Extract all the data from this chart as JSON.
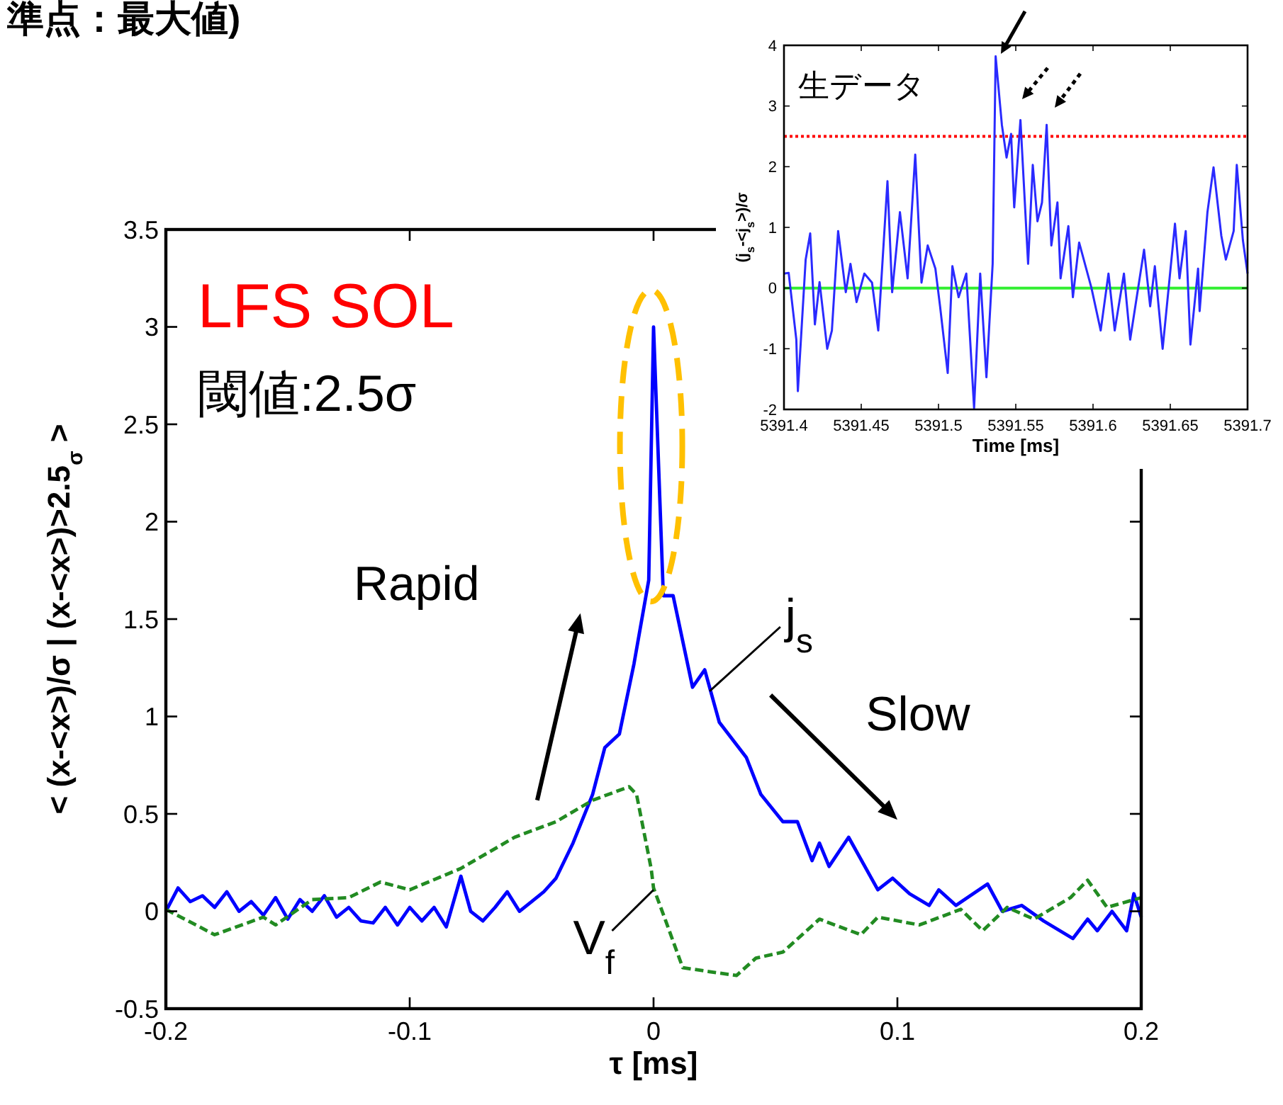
{
  "chart_data": [
    {
      "type": "line",
      "xlabel": "τ [ms]",
      "ylabel": "< (x-<x>)/σ | (x-<x>)>2.5$_{σ}$ >",
      "xlim": [
        -0.2,
        0.2
      ],
      "ylim": [
        -0.5,
        3.5
      ],
      "xticks": [
        -0.2,
        -0.1,
        0,
        0.1,
        0.2
      ],
      "yticks": [
        -0.5,
        0,
        0.5,
        1,
        1.5,
        2,
        2.5,
        3,
        3.5
      ],
      "annotations": [
        "準点：最大値)",
        "LFS SOL",
        "閾値:2.5σ",
        "Rapid",
        "Slow"
      ],
      "series": [
        {
          "name": "j$_{s}$",
          "color": "#0000ff",
          "line_style": "solid",
          "x": [
            -0.2,
            -0.195,
            -0.19,
            -0.185,
            -0.18,
            -0.175,
            -0.17,
            -0.165,
            -0.16,
            -0.155,
            -0.15,
            -0.145,
            -0.14,
            -0.135,
            -0.13,
            -0.125,
            -0.12,
            -0.115,
            -0.11,
            -0.105,
            -0.1,
            -0.095,
            -0.09,
            -0.085,
            -0.079,
            -0.075,
            -0.07,
            -0.065,
            -0.06,
            -0.055,
            -0.05,
            -0.045,
            -0.04,
            -0.033,
            -0.025,
            -0.02,
            -0.014,
            -0.008,
            -0.002,
            0,
            0.004,
            0.008,
            0.016,
            0.021,
            0.027,
            0.038,
            0.044,
            0.053,
            0.059,
            0.065,
            0.068,
            0.072,
            0.08,
            0.092,
            0.098,
            0.105,
            0.113,
            0.117,
            0.124,
            0.137,
            0.143,
            0.151,
            0.16,
            0.172,
            0.178,
            0.182,
            0.188,
            0.194,
            0.197,
            0.2
          ],
          "values": [
            0,
            0.12,
            0.05,
            0.08,
            0.02,
            0.1,
            0,
            0.05,
            -0.02,
            0.07,
            -0.04,
            0.06,
            0,
            0.08,
            -0.03,
            0.02,
            -0.05,
            -0.06,
            0.02,
            -0.07,
            0.02,
            -0.05,
            0.02,
            -0.08,
            0.18,
            0,
            -0.05,
            0.02,
            0.1,
            0,
            0.05,
            0.1,
            0.17,
            0.35,
            0.6,
            0.84,
            0.91,
            1.27,
            1.7,
            3.0,
            1.62,
            1.62,
            1.15,
            1.24,
            0.97,
            0.79,
            0.6,
            0.46,
            0.46,
            0.26,
            0.35,
            0.23,
            0.38,
            0.11,
            0.17,
            0.09,
            0.03,
            0.11,
            0.03,
            0.14,
            0,
            0.03,
            -0.05,
            -0.14,
            -0.04,
            -0.1,
            0,
            -0.1,
            0.09,
            -0.03
          ]
        },
        {
          "name": "V$_{f}$",
          "color": "#228b22",
          "line_style": "dashed",
          "x": [
            -0.2,
            -0.18,
            -0.16,
            -0.155,
            -0.14,
            -0.125,
            -0.112,
            -0.1,
            -0.079,
            -0.057,
            -0.04,
            -0.025,
            -0.01,
            -0.007,
            -0.001,
            0,
            0.005,
            0.012,
            0.023,
            0.034,
            0.042,
            0.053,
            0.068,
            0.085,
            0.092,
            0.109,
            0.126,
            0.135,
            0.145,
            0.156,
            0.171,
            0.178,
            0.186,
            0.2
          ],
          "values": [
            0.01,
            -0.12,
            -0.03,
            -0.07,
            0.06,
            0.07,
            0.15,
            0.11,
            0.22,
            0.38,
            0.46,
            0.57,
            0.64,
            0.6,
            0.22,
            0.12,
            -0.05,
            -0.29,
            -0.31,
            -0.33,
            -0.24,
            -0.21,
            -0.04,
            -0.12,
            -0.03,
            -0.07,
            0.01,
            -0.1,
            0.02,
            -0.04,
            0.07,
            0.16,
            0.02,
            0.07
          ]
        }
      ]
    },
    {
      "type": "line",
      "xlabel": "Time [ms]",
      "ylabel": "(j$_{s}$-<j$_{s}$>)/σ",
      "xlim": [
        5391.4,
        5391.7
      ],
      "ylim": [
        -2,
        4
      ],
      "xticks": [
        5391.4,
        5391.45,
        5391.5,
        5391.55,
        5391.6,
        5391.65,
        5391.7
      ],
      "yticks": [
        -2,
        -1,
        0,
        1,
        2,
        3,
        4
      ],
      "annotations": [
        "生データ"
      ],
      "ref_lines": [
        {
          "axis": "y",
          "value": 2.5,
          "color": "#ff0000",
          "line_style": "dotted"
        },
        {
          "axis": "y",
          "value": 0,
          "color": "#33ee33",
          "line_style": "solid"
        }
      ],
      "series": [
        {
          "color": "#2a2aff",
          "line_style": "solid",
          "x": [
            5391.4,
            5391.403,
            5391.408,
            5391.409,
            5391.414,
            5391.417,
            5391.42,
            5391.423,
            5391.428,
            5391.431,
            5391.435,
            5391.44,
            5391.443,
            5391.447,
            5391.452,
            5391.457,
            5391.461,
            5391.467,
            5391.47,
            5391.475,
            5391.48,
            5391.485,
            5391.489,
            5391.493,
            5391.498,
            5391.501,
            5391.506,
            5391.509,
            5391.513,
            5391.518,
            5391.523,
            5391.527,
            5391.531,
            5391.535,
            5391.537,
            5391.541,
            5391.544,
            5391.547,
            5391.549,
            5391.553,
            5391.558,
            5391.561,
            5391.564,
            5391.567,
            5391.57,
            5391.573,
            5391.577,
            5391.579,
            5391.584,
            5391.587,
            5391.591,
            5391.599,
            5391.605,
            5391.61,
            5391.614,
            5391.62,
            5391.624,
            5391.633,
            5391.637,
            5391.64,
            5391.645,
            5391.653,
            5391.656,
            5391.66,
            5391.663,
            5391.668,
            5391.669,
            5391.674,
            5391.678,
            5391.683,
            5391.686,
            5391.691,
            5391.693,
            5391.697,
            5391.7
          ],
          "values": [
            0.24,
            0.25,
            -0.85,
            -1.7,
            0.47,
            0.9,
            -0.6,
            0.1,
            -1.0,
            -0.7,
            0.94,
            -0.07,
            0.4,
            -0.23,
            0.24,
            0.09,
            -0.7,
            1.76,
            -0.07,
            1.25,
            0.16,
            2.2,
            0.09,
            0.7,
            0.32,
            -0.3,
            -1.4,
            0.36,
            -0.15,
            0.24,
            -1.98,
            0.24,
            -1.47,
            0.4,
            3.82,
            2.69,
            2.15,
            2.54,
            1.33,
            2.77,
            0.4,
            2.03,
            1.1,
            1.41,
            2.69,
            0.7,
            1.41,
            0.16,
            1.02,
            -0.15,
            0.75,
            0,
            -0.7,
            0.24,
            -0.7,
            0.24,
            -0.85,
            0.63,
            -0.3,
            0.36,
            -1.0,
            1.06,
            0.16,
            0.94,
            -0.93,
            0.32,
            -0.38,
            1.25,
            1.99,
            0.86,
            0.47,
            0.94,
            2.03,
            0.79,
            0.24
          ]
        }
      ]
    }
  ]
}
